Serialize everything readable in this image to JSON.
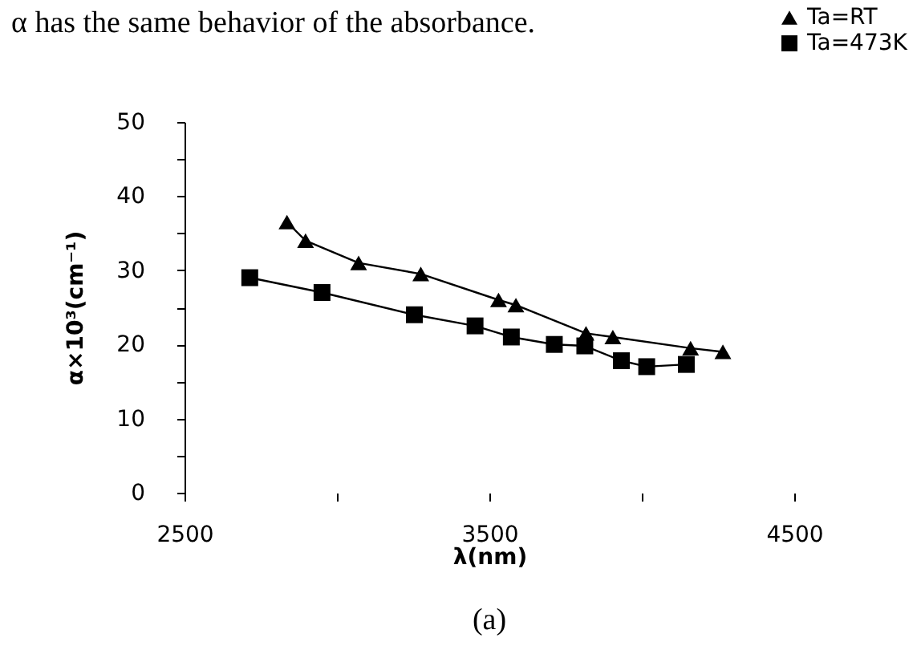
{
  "chart_data": {
    "type": "line",
    "xlabel": "λ(nm)",
    "ylabel": "α×10³(cm⁻¹)",
    "annotations": [
      "α has the same behavior of the absorbance.",
      "(a)"
    ],
    "xlim": [
      2500,
      4500
    ],
    "xticks": [
      2500,
      {
        "value": 3000,
        "label": null
      },
      3500,
      {
        "value": 4000,
        "label": null
      },
      4500
    ],
    "ylim": [
      0,
      50
    ],
    "yticks": [
      0,
      {
        "value": 5,
        "label": null
      },
      10,
      {
        "value": 15,
        "label": null
      },
      20,
      {
        "value": 25,
        "label": null
      },
      30,
      {
        "value": 35,
        "label": null
      },
      40,
      {
        "value": 45,
        "label": null
      },
      50
    ],
    "grid": false,
    "legend": "top right",
    "line_style": "solid",
    "series": [
      {
        "name": "Ta=RT",
        "color": "#000000",
        "marker": "triangle",
        "x": [
          2836,
          2897,
          3071,
          3275,
          3530,
          3587,
          3817,
          3905,
          4160,
          4266
        ],
        "values": [
          36.5,
          34,
          31,
          29.5,
          26,
          25.3,
          21.5,
          21,
          19.5,
          19
        ]
      },
      {
        "name": "Ta=473K",
        "color": "#000000",
        "marker": "square",
        "x": [
          2714,
          2951,
          3254,
          3453,
          3572,
          3713,
          3813,
          3933,
          4016,
          4146
        ],
        "values": [
          29,
          27,
          24,
          22.5,
          21,
          20,
          19.8,
          17.8,
          17,
          17.3
        ]
      }
    ]
  }
}
